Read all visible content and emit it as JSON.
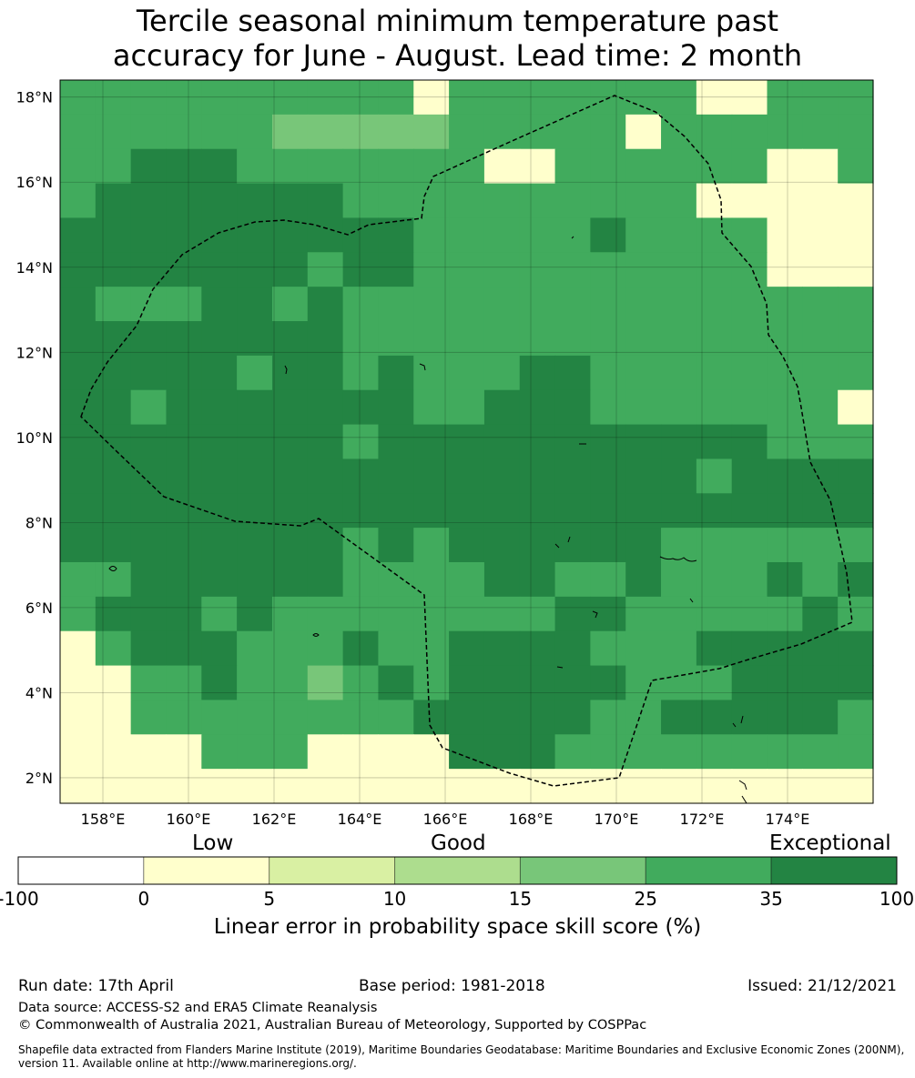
{
  "title": {
    "line1": "Tercile seasonal minimum temperature past",
    "line2": "accuracy for June - August. Lead time: 2 month"
  },
  "map": {
    "lat_labels": [
      "18°N",
      "16°N",
      "14°N",
      "12°N",
      "10°N",
      "8°N",
      "6°N",
      "4°N",
      "2°N"
    ],
    "lon_labels": [
      "158°E",
      "160°E",
      "162°E",
      "164°E",
      "166°E",
      "168°E",
      "170°E",
      "172°E",
      "174°E"
    ],
    "lat_range": [
      1.4,
      18.4
    ],
    "lon_range": [
      157.0,
      176.0
    ],
    "grid_step_deg": 0.8333,
    "grid_cols": 23,
    "grid_rows": 21,
    "skill_grid": [
      "44444444440444444400444",
      "44444433333444440444444",
      "44555444444400444444004",
      "45555555444444444400000",
      "55555555554444454444000",
      "55555554554444444444000",
      "54445545444444444444444",
      "55555555444444444444444",
      "55555455454445544444444",
      "55455555554455544444440",
      "55555555455555555555444",
      "55555555555555555545555",
      "55555555555555555555555",
      "55555555454555555444444",
      "44555555444455445444545",
      "45554544444444554444454",
      "04555444544555544455555",
      "00445443454555554445555",
      "00444444445555544555554",
      "00004440000555444444444",
      "00000000000000000000000"
    ],
    "colors": [
      "#ffffcc",
      "#d9f0a3",
      "#addd8e",
      "#78c679",
      "#41ab5d",
      "#238443"
    ]
  },
  "colorbar": {
    "categories": [
      "Low",
      "Good",
      "Exceptional"
    ],
    "ticks": [
      "-100",
      "0",
      "5",
      "10",
      "15",
      "25",
      "35",
      "100"
    ],
    "colors": [
      "#ffffff",
      "#ffffcc",
      "#d9f0a3",
      "#addd8e",
      "#78c679",
      "#41ab5d",
      "#238443"
    ],
    "title": "Linear error in probability space skill score (%)"
  },
  "footer": {
    "run_date": "Run date: 17th April",
    "base_period": "Base period: 1981-2018",
    "issued": "Issued: 21/12/2021",
    "data_source": "Data source: ACCESS-S2 and ERA5 Climate Reanalysis",
    "copyright": "© Commonwealth of Australia 2021, Australian Bureau of Meteorology, Supported by COSPPac",
    "shapefile_line1": "Shapefile data extracted from Flanders Marine Institute (2019), Maritime Boundaries Geodatabase: Maritime Boundaries and Exclusive Economic Zones (200NM),",
    "shapefile_line2": "version 11. Available online at http://www.marineregions.org/."
  }
}
